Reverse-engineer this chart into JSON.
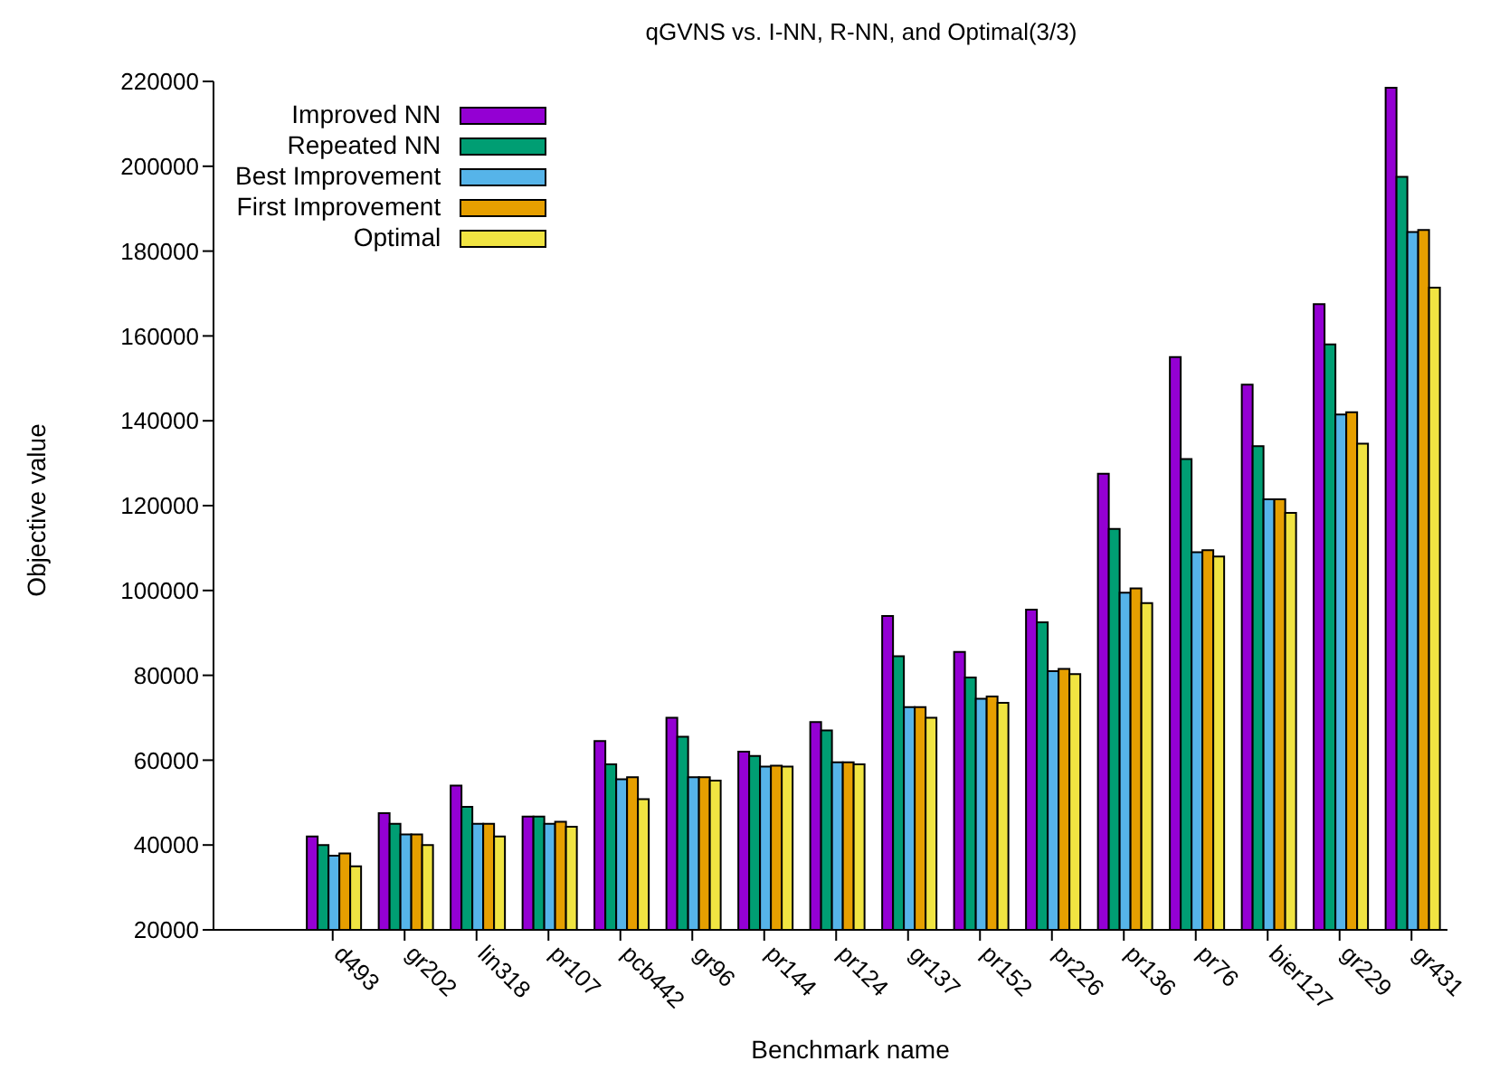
{
  "chart_data": {
    "type": "bar",
    "title": "qGVNS vs. I-NN, R-NN, and Optimal(3/3)",
    "xlabel": "Benchmark name",
    "ylabel": "Objective value",
    "categories": [
      "d493",
      "gr202",
      "lin318",
      "pr107",
      "pcb442",
      "gr96",
      "pr144",
      "pr124",
      "gr137",
      "pr152",
      "pr226",
      "pr136",
      "pr76",
      "bier127",
      "gr229",
      "gr431"
    ],
    "series": [
      {
        "name": "Improved NN",
        "color": "#9400d3",
        "values": [
          42000,
          47500,
          54000,
          46700,
          64500,
          70000,
          62000,
          69000,
          94000,
          85500,
          95500,
          127500,
          155000,
          148500,
          167500,
          218500
        ]
      },
      {
        "name": "Repeated NN",
        "color": "#009e73",
        "values": [
          40000,
          45000,
          49000,
          46700,
          59000,
          65500,
          61000,
          67000,
          84500,
          79500,
          92500,
          114500,
          131000,
          134000,
          158000,
          197500
        ]
      },
      {
        "name": "Best Improvement",
        "color": "#56b4e9",
        "values": [
          37500,
          42500,
          45000,
          45000,
          55500,
          56000,
          58500,
          59500,
          72500,
          74500,
          81000,
          99500,
          109000,
          121500,
          141500,
          184500
        ]
      },
      {
        "name": "First Improvement",
        "color": "#e69f00",
        "values": [
          38000,
          42500,
          45000,
          45500,
          56000,
          56000,
          58700,
          59500,
          72500,
          75000,
          81500,
          100500,
          109500,
          121500,
          142000,
          185000
        ]
      },
      {
        "name": "Optimal",
        "color": "#f0e442",
        "values": [
          35000,
          40000,
          42000,
          44300,
          50800,
          55200,
          58500,
          59000,
          70000,
          73500,
          80300,
          97000,
          108000,
          118300,
          134600,
          171400
        ]
      }
    ],
    "ylim": [
      20000,
      220000
    ],
    "yticks": [
      20000,
      40000,
      60000,
      80000,
      100000,
      120000,
      140000,
      160000,
      180000,
      200000,
      220000
    ],
    "grid": false,
    "legend": "top left"
  }
}
